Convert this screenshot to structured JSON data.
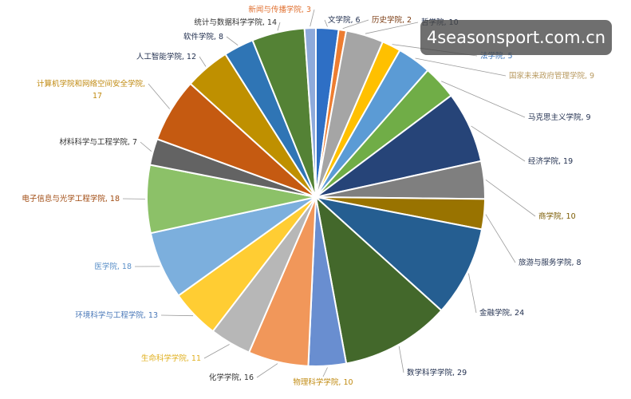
{
  "watermark": "4seasonsport.com.cn",
  "chart_data": {
    "type": "pie",
    "categories": [
      "文学院",
      "历史学院",
      "哲学院",
      "法学院",
      "国家未来政府管理学院",
      "马克思主义学院",
      "经济学院",
      "商学院",
      "旅游与服务学院",
      "金融学院",
      "数学科学学院",
      "物理科学学院",
      "化学学院",
      "生命科学学院",
      "环境科学与工程学院",
      "医学院",
      "电子信息与光学工程学院",
      "材料科学与工程学院",
      "计算机学院和网络空间安全学院",
      "人工智能学院",
      "软件学院",
      "统计与数据科学学院",
      "新闻与传播学院"
    ],
    "values": [
      6,
      2,
      10,
      5,
      9,
      9,
      19,
      10,
      8,
      24,
      29,
      10,
      16,
      11,
      13,
      18,
      18,
      7,
      17,
      12,
      8,
      14,
      3
    ],
    "labels": [
      "文学院, 6",
      "历史学院, 2",
      "哲学院, 10",
      "法学院, 5",
      "国家未来政府管理学院, 9",
      "马克思主义学院, 9",
      "经济学院, 19",
      "商学院, 10",
      "旅游与服务学院, 8",
      "金融学院, 24",
      "数学科学学院, 29",
      "物理科学学院, 10",
      "化学学院, 16",
      "生命科学学院, 11",
      "环境科学与工程学院, 13",
      "医学院, 18",
      "电子信息与光学工程学院, 18",
      "材料科学与工程学院, 7",
      "计算机学院和网络空间安全学院,",
      "人工智能学院, 12",
      "软件学院, 8",
      "统计与数据科学学院, 14",
      "新闻与传播学院, 3"
    ],
    "label_second_line": {
      "18": "17"
    },
    "colors": [
      "#2e6fc5",
      "#ed7d31",
      "#a5a5a5",
      "#ffc000",
      "#5b9bd5",
      "#70ad47",
      "#264478",
      "#7f7f7f",
      "#997300",
      "#255e91",
      "#43682b",
      "#698ed0",
      "#f1975a",
      "#b7b7b7",
      "#ffcd33",
      "#7cafdd",
      "#8cc168",
      "#636363",
      "#c55a11",
      "#bf9000",
      "#2f75b5",
      "#548235",
      "#8eaadb"
    ],
    "label_colors": [
      "#1f2d4d",
      "#7a3a10",
      "#1f2d4d",
      "#3570b8",
      "#b89a60",
      "#1f2d4d",
      "#1f2d4d",
      "#7a5a00",
      "#1f2d4d",
      "#1f2d4d",
      "#1f2d4d",
      "#c08a10",
      "#333333",
      "#e0b020",
      "#4a78b8",
      "#5a8fc8",
      "#a04a10",
      "#333333",
      "#c08a10",
      "#1f2d4d",
      "#1f2d4d",
      "#333333",
      "#e07030"
    ],
    "title": "",
    "legend": "none"
  }
}
